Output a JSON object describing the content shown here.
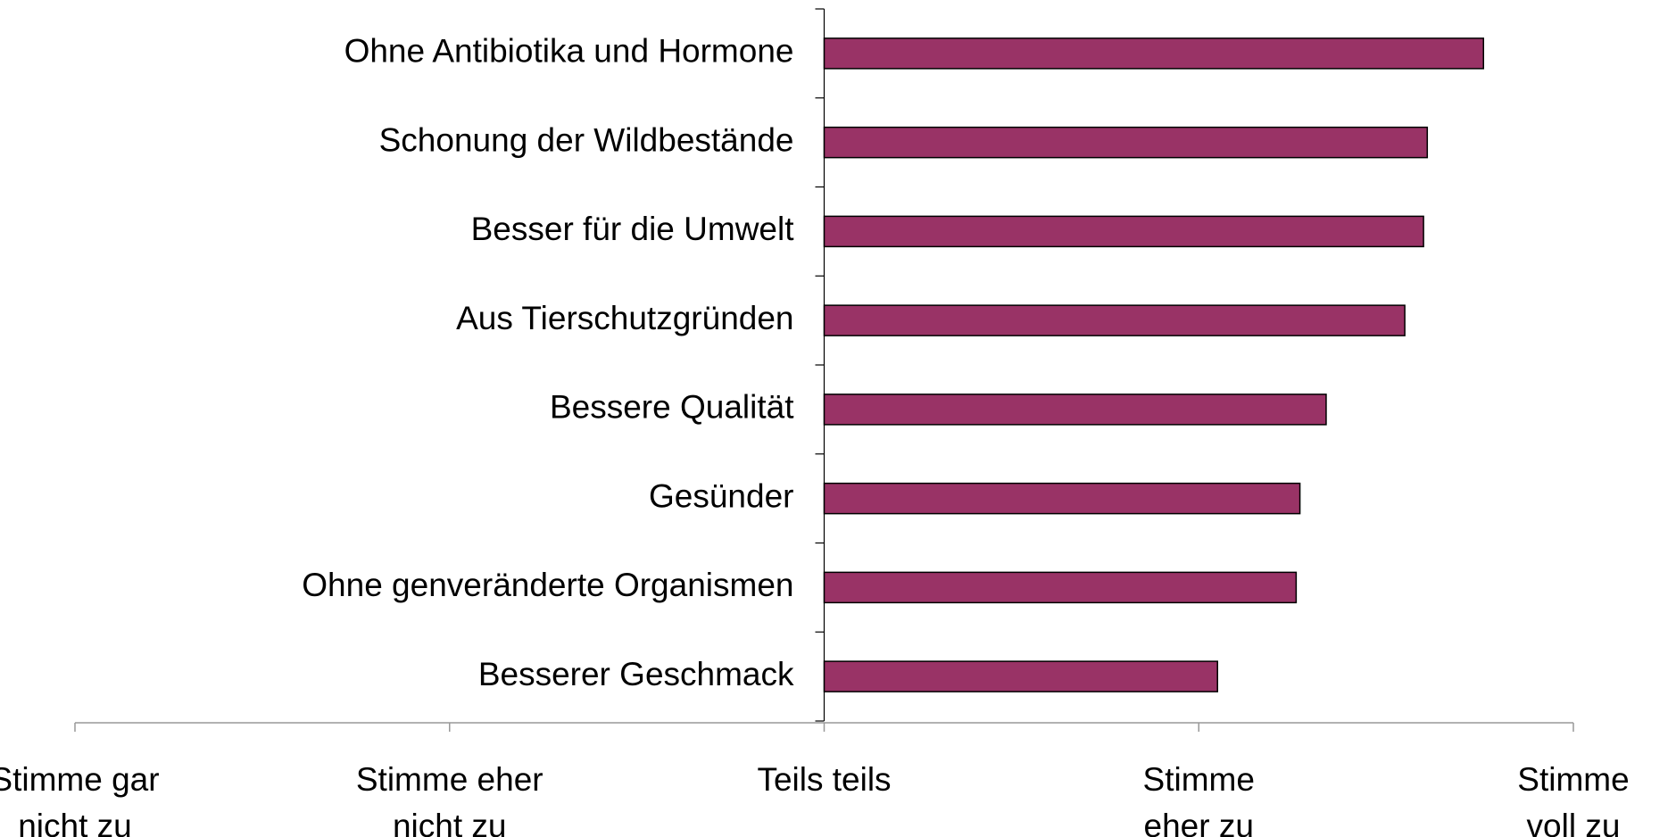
{
  "chart_data": {
    "type": "barh",
    "categories": [
      "Ohne Antibiotika und Hormone",
      "Schonung der Wildbestände",
      "Besser für die Umwelt",
      "Aus Tierschutzgründen",
      "Bessere Qualität",
      "Gesünder",
      "Ohne genveränderte Organismen",
      "Besserer Geschmack"
    ],
    "values": [
      1.76,
      1.61,
      1.6,
      1.55,
      1.34,
      1.27,
      1.26,
      1.05
    ],
    "color": "#993366",
    "xlim": [
      -2,
      2
    ],
    "xticks": [
      {
        "value": -2,
        "label": "Stimme gar\nnicht zu"
      },
      {
        "value": -1,
        "label": "Stimme eher\nnicht zu"
      },
      {
        "value": 0,
        "label": "Teils teils"
      },
      {
        "value": 1,
        "label": "Stimme\neher zu"
      },
      {
        "value": 2,
        "label": "Stimme\nvoll zu"
      }
    ]
  }
}
